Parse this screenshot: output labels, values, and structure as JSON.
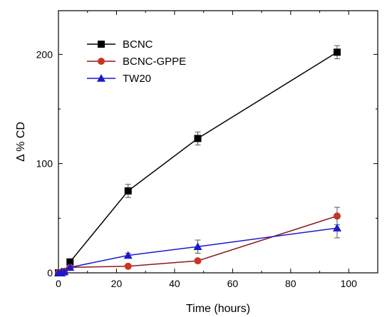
{
  "chart_data": {
    "type": "line",
    "xlabel": "Time (hours)",
    "ylabel": "Δ % CD",
    "xlim": [
      0,
      110
    ],
    "ylim": [
      0,
      240
    ],
    "xticks": [
      0,
      20,
      40,
      60,
      80,
      100
    ],
    "yticks": [
      0,
      100,
      200
    ],
    "minor_ticks": true,
    "grid": false,
    "legend_position": "top-left",
    "series": [
      {
        "name": "BCNC",
        "color": "#000000",
        "marker": "square",
        "x": [
          0,
          1,
          2,
          4,
          24,
          48,
          96
        ],
        "y": [
          0,
          0,
          1,
          10,
          75,
          123,
          202
        ],
        "err": [
          0,
          0,
          0,
          1,
          6,
          6,
          6
        ]
      },
      {
        "name": "BCNC-GPPE",
        "color": "#8b1a1a",
        "marker_color": "#cc3322",
        "marker": "circle",
        "x": [
          0,
          1,
          2,
          4,
          24,
          48,
          96
        ],
        "y": [
          0,
          0,
          1,
          5,
          6,
          11,
          52
        ],
        "err": [
          0,
          0,
          0,
          1,
          1,
          2,
          8
        ]
      },
      {
        "name": "TW20",
        "color": "#1a1acc",
        "marker": "triangle",
        "x": [
          0,
          1,
          2,
          4,
          24,
          48,
          96
        ],
        "y": [
          0,
          0,
          1,
          5,
          16,
          24,
          41
        ],
        "err": [
          0,
          0,
          0,
          1,
          2,
          6,
          9
        ]
      }
    ]
  }
}
